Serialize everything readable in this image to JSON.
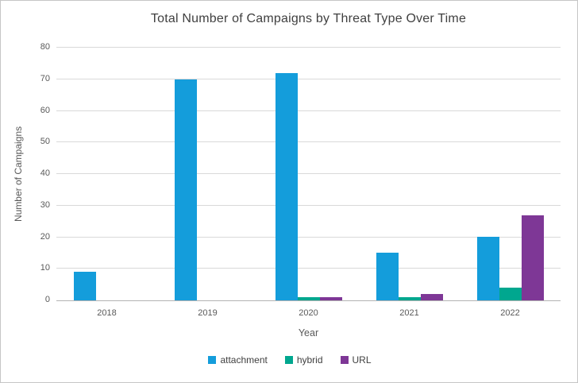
{
  "chart_data": {
    "type": "bar",
    "title": "Total Number of Campaigns by Threat Type Over Time",
    "xlabel": "Year",
    "ylabel": "Number of Campaigns",
    "categories": [
      "2018",
      "2019",
      "2020",
      "2021",
      "2022"
    ],
    "series": [
      {
        "name": "attachment",
        "color": "#149DDB",
        "values": [
          9,
          70,
          72,
          15,
          20
        ]
      },
      {
        "name": "hybrid",
        "color": "#00A78F",
        "values": [
          0,
          0,
          1,
          1,
          4
        ]
      },
      {
        "name": "URL",
        "color": "#7E3796",
        "values": [
          0,
          0,
          1,
          2,
          27
        ]
      }
    ],
    "ylim": [
      0,
      80
    ],
    "ytick_step": 10,
    "grid": true,
    "legend_position": "bottom"
  },
  "style_colors": {
    "gridline": "#d9d9d9",
    "axis_line": "#b3b3b3",
    "title_text": "#404040",
    "tick_text": "#595959",
    "frame_border": "#c6c6c6"
  }
}
